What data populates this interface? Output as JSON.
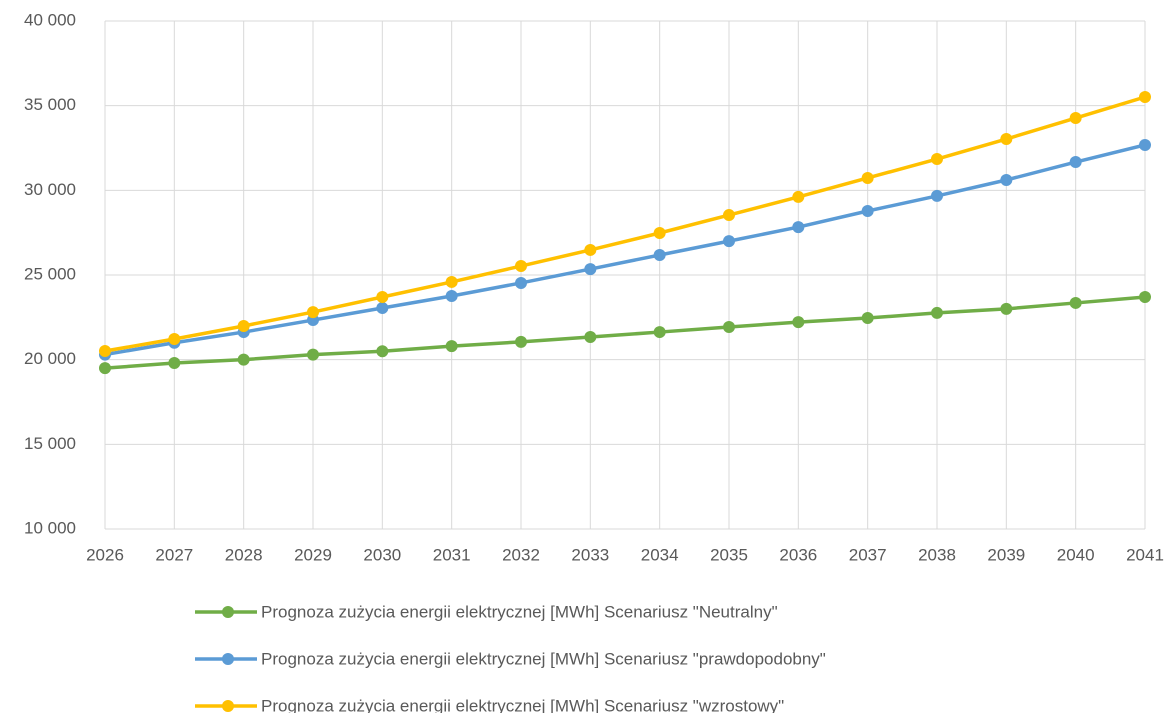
{
  "chart_data": {
    "type": "line",
    "categories": [
      "2026",
      "2027",
      "2028",
      "2029",
      "2030",
      "2031",
      "2032",
      "2033",
      "2034",
      "2035",
      "2036",
      "2037",
      "2038",
      "2039",
      "2040",
      "2041"
    ],
    "series": [
      {
        "name": "Prognoza zużycia energii elektrycznej [MWh] Scenariusz \"Neutralny\"",
        "color": "#70ad47",
        "values": [
          19500,
          19800,
          20000,
          20300,
          20500,
          20800,
          21050,
          21340,
          21630,
          21930,
          22220,
          22460,
          22760,
          23000,
          23350,
          23700
        ]
      },
      {
        "name": "Prognoza zużycia energii elektrycznej [MWh] Scenariusz \"prawdopodobny\"",
        "color": "#5b9bd5",
        "values": [
          20300,
          21000,
          21630,
          22340,
          23050,
          23760,
          24530,
          25350,
          26180,
          27000,
          27830,
          28780,
          29670,
          30610,
          31670,
          32680
        ]
      },
      {
        "name": "Prognoza zużycia energii elektrycznej [MWh] Scenariusz \"wzrostowy\"",
        "color": "#ffc000",
        "values": [
          20510,
          21220,
          21990,
          22810,
          23700,
          24590,
          25530,
          26480,
          27480,
          28540,
          29610,
          30730,
          31850,
          33030,
          34270,
          35510
        ]
      }
    ],
    "ylim": [
      10000,
      40000
    ],
    "yticks": [
      {
        "value": 10000,
        "label": "10 000"
      },
      {
        "value": 15000,
        "label": "15 000"
      },
      {
        "value": 20000,
        "label": "20 000"
      },
      {
        "value": 25000,
        "label": "25 000"
      },
      {
        "value": 30000,
        "label": "30 000"
      },
      {
        "value": 35000,
        "label": "35 000"
      },
      {
        "value": 40000,
        "label": "40 000"
      }
    ],
    "grid": true,
    "legend": "bottom"
  }
}
